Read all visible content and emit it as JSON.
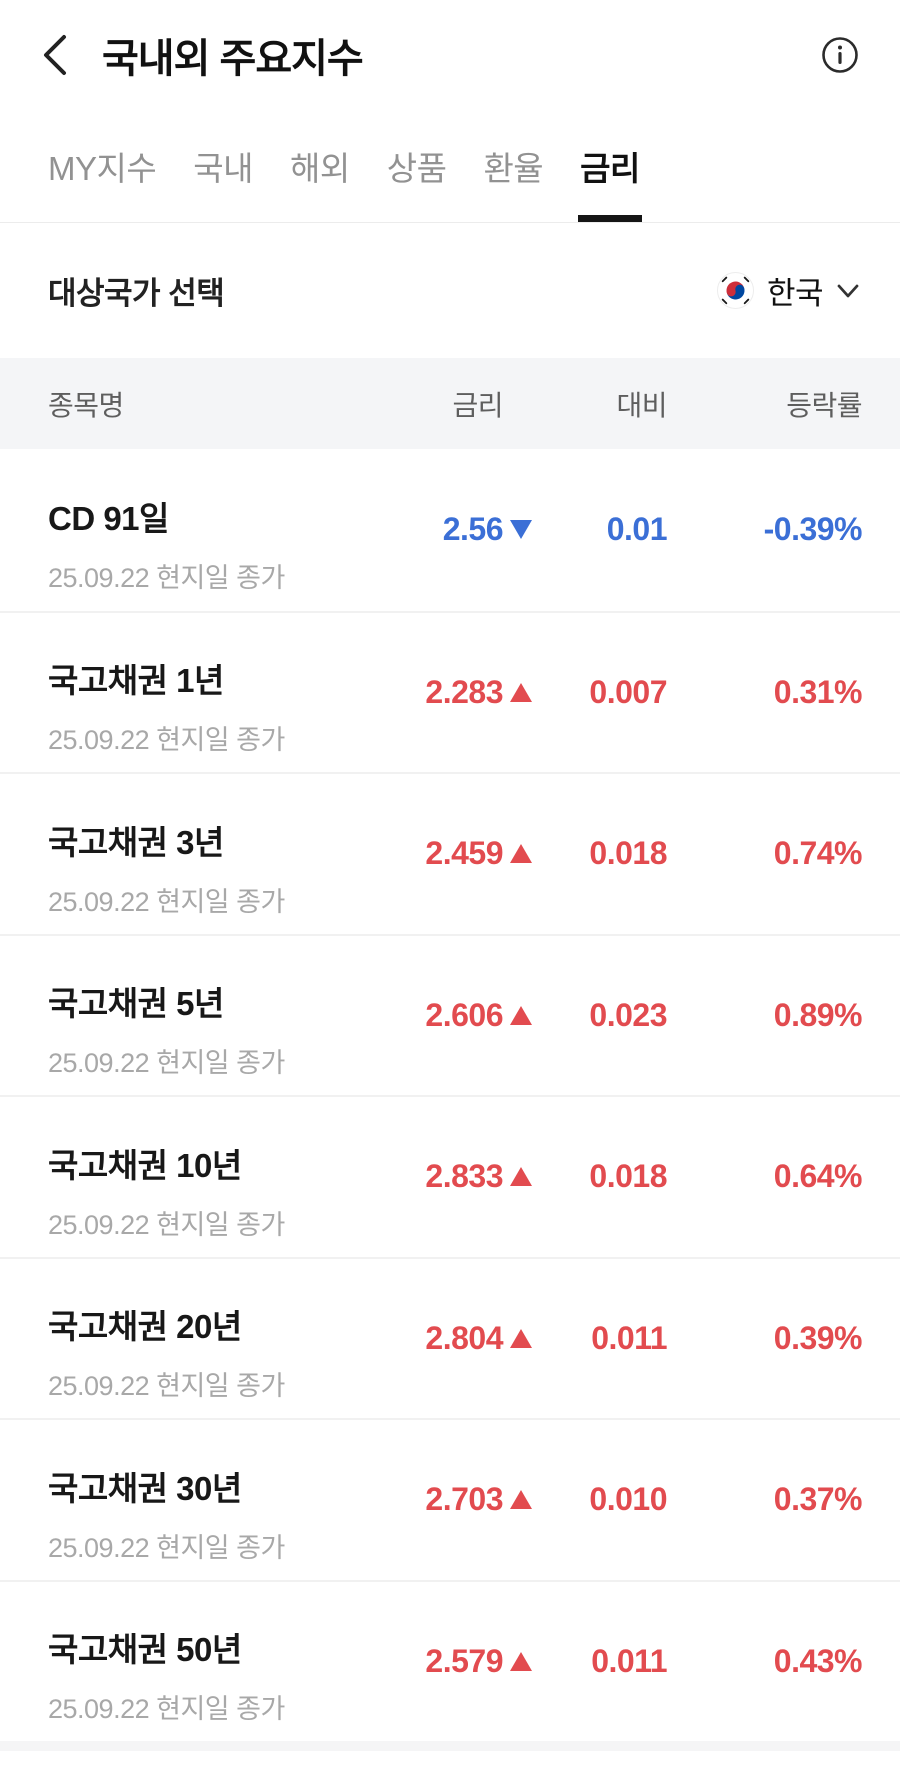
{
  "header": {
    "title": "국내외 주요지수",
    "back_icon": "chevron-left",
    "info_icon": "info-circle"
  },
  "tabs": [
    {
      "key": "my",
      "label": "MY지수",
      "active": false
    },
    {
      "key": "domestic",
      "label": "국내",
      "active": false
    },
    {
      "key": "overseas",
      "label": "해외",
      "active": false
    },
    {
      "key": "commodity",
      "label": "상품",
      "active": false
    },
    {
      "key": "fx",
      "label": "환율",
      "active": false
    },
    {
      "key": "rate",
      "label": "금리",
      "active": true
    }
  ],
  "country_selector": {
    "label": "대상국가 선택",
    "flag_icon": "korea-flag",
    "value": "한국",
    "chevron_icon": "chevron-down"
  },
  "table": {
    "columns": [
      "종목명",
      "금리",
      "대비",
      "등락률"
    ],
    "rows": [
      {
        "name": "CD 91일",
        "date": "25.09.22 현지일 종가",
        "rate": "2.56",
        "change": "0.01",
        "pct": "-0.39%",
        "direction": "down"
      },
      {
        "name": "국고채권 1년",
        "date": "25.09.22 현지일 종가",
        "rate": "2.283",
        "change": "0.007",
        "pct": "0.31%",
        "direction": "up"
      },
      {
        "name": "국고채권 3년",
        "date": "25.09.22 현지일 종가",
        "rate": "2.459",
        "change": "0.018",
        "pct": "0.74%",
        "direction": "up"
      },
      {
        "name": "국고채권 5년",
        "date": "25.09.22 현지일 종가",
        "rate": "2.606",
        "change": "0.023",
        "pct": "0.89%",
        "direction": "up"
      },
      {
        "name": "국고채권 10년",
        "date": "25.09.22 현지일 종가",
        "rate": "2.833",
        "change": "0.018",
        "pct": "0.64%",
        "direction": "up"
      },
      {
        "name": "국고채권 20년",
        "date": "25.09.22 현지일 종가",
        "rate": "2.804",
        "change": "0.011",
        "pct": "0.39%",
        "direction": "up"
      },
      {
        "name": "국고채권 30년",
        "date": "25.09.22 현지일 종가",
        "rate": "2.703",
        "change": "0.010",
        "pct": "0.37%",
        "direction": "up"
      },
      {
        "name": "국고채권 50년",
        "date": "25.09.22 현지일 종가",
        "rate": "2.579",
        "change": "0.011",
        "pct": "0.43%",
        "direction": "up"
      }
    ]
  },
  "colors": {
    "up": "#e24b4f",
    "down": "#3b6fd6",
    "accent_underline": "#151515",
    "header_bg": "#f4f5f7"
  }
}
